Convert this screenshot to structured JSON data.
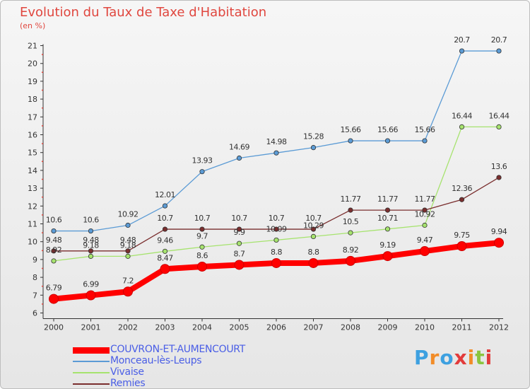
{
  "chart_data": {
    "type": "line",
    "title": "Evolution du Taux de Taxe d'Habitation",
    "ylabel": "(en %)",
    "xlabel": "",
    "categories": [
      "2000",
      "2001",
      "2002",
      "2003",
      "2004",
      "2005",
      "2006",
      "2007",
      "2008",
      "2009",
      "2010",
      "2011",
      "2012"
    ],
    "ylim": [
      6,
      21
    ],
    "yticks": [
      "6",
      "7",
      "8",
      "9",
      "10",
      "11",
      "12",
      "13",
      "14",
      "15",
      "16",
      "17",
      "18",
      "19",
      "20",
      "21"
    ],
    "series": [
      {
        "name": "COUVRON-ET-AUMENCOURT",
        "color": "#ff0000",
        "values": [
          6.79,
          6.99,
          7.2,
          8.47,
          8.6,
          8.7,
          8.8,
          8.8,
          8.92,
          9.19,
          9.47,
          9.75,
          9.94
        ],
        "labels": [
          "6.79",
          "6.99",
          "7.2",
          "8.47",
          "8.6",
          "8.7",
          "8.8",
          "8.8",
          "8.92",
          "9.19",
          "9.47",
          "9.75",
          "9.94"
        ]
      },
      {
        "name": "Monceau-lès-Leups",
        "color": "#5b9bd5",
        "values": [
          10.6,
          10.6,
          10.92,
          12.01,
          13.93,
          14.69,
          14.98,
          15.28,
          15.66,
          15.66,
          15.66,
          20.7,
          20.7
        ],
        "labels": [
          "10.6",
          "10.6",
          "10.92",
          "12.01",
          "13.93",
          "14.69",
          "14.98",
          "15.28",
          "15.66",
          "15.66",
          "15.66",
          "20.7",
          "20.7"
        ]
      },
      {
        "name": "Vivaise",
        "color": "#a6e36e",
        "values": [
          8.92,
          9.18,
          9.18,
          9.46,
          9.7,
          9.9,
          10.09,
          10.29,
          10.5,
          10.71,
          10.92,
          16.44,
          16.44
        ],
        "labels": [
          "8.92",
          "9.18",
          "9.18",
          "9.46",
          "9.7",
          "9.9",
          "10.09",
          "10.29",
          "10.5",
          "10.71",
          "10.92",
          "16.44",
          "16.44"
        ]
      },
      {
        "name": "Remies",
        "color": "#7a2e2e",
        "values": [
          9.48,
          9.48,
          9.48,
          10.7,
          10.7,
          10.7,
          10.7,
          10.7,
          11.77,
          11.77,
          11.77,
          12.36,
          13.6
        ],
        "labels": [
          "9.48",
          "9.48",
          "9.48",
          "10.7",
          "10.7",
          "10.7",
          "10.7",
          "10.7",
          "11.77",
          "11.77",
          "11.77",
          "12.36",
          "13.6"
        ]
      }
    ],
    "legend": "bottom-left",
    "grid": false
  },
  "logo": {
    "letters": [
      "P",
      "r",
      "o",
      "x",
      "i",
      "t",
      "i"
    ],
    "colors": [
      "#3da0e0",
      "#f28c28",
      "#3da0e0",
      "#e23b3b",
      "#f28c28",
      "#8bc53f",
      "#e23b3b"
    ]
  }
}
